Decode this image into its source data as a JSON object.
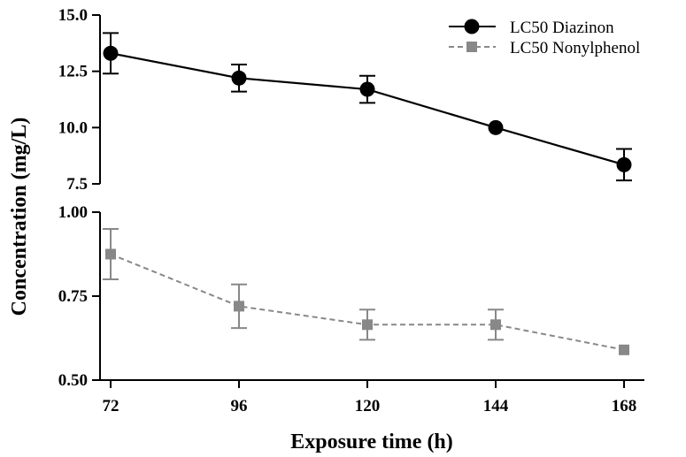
{
  "chart_data": {
    "type": "line",
    "layout": "broken-y-axis",
    "xlabel": "Exposure time (h)",
    "ylabel": "Concentration (mg/L)",
    "x": [
      72,
      96,
      120,
      144,
      168
    ],
    "x_tick_labels": [
      "72",
      "96",
      "120",
      "144",
      "168"
    ],
    "xlim": [
      72,
      168
    ],
    "grid": false,
    "legend_position": "top-right",
    "panels": [
      {
        "id": "upper",
        "ylim": [
          7.5,
          15.0
        ],
        "y_ticks": [
          7.5,
          10.0,
          12.5,
          15.0
        ],
        "y_tick_labels": [
          "7.5",
          "10.0",
          "12.5",
          "15.0"
        ],
        "series": [
          {
            "name": "LC50 Diazinon",
            "color": "#000000",
            "marker": "circle",
            "line_style": "solid",
            "values": [
              13.3,
              12.2,
              11.7,
              10.0,
              8.35
            ],
            "error": [
              0.9,
              0.6,
              0.6,
              0.0,
              0.7
            ]
          }
        ]
      },
      {
        "id": "lower",
        "ylim": [
          0.5,
          1.0
        ],
        "y_ticks": [
          0.5,
          0.75,
          1.0
        ],
        "y_tick_labels": [
          "0.50",
          "0.75",
          "1.00"
        ],
        "series": [
          {
            "name": "LC50 Nonylphenol",
            "color": "#888888",
            "marker": "square",
            "line_style": "dashed",
            "values": [
              0.875,
              0.72,
              0.665,
              0.665,
              0.59
            ],
            "error": [
              0.075,
              0.065,
              0.045,
              0.045,
              0.0
            ]
          }
        ]
      }
    ]
  }
}
